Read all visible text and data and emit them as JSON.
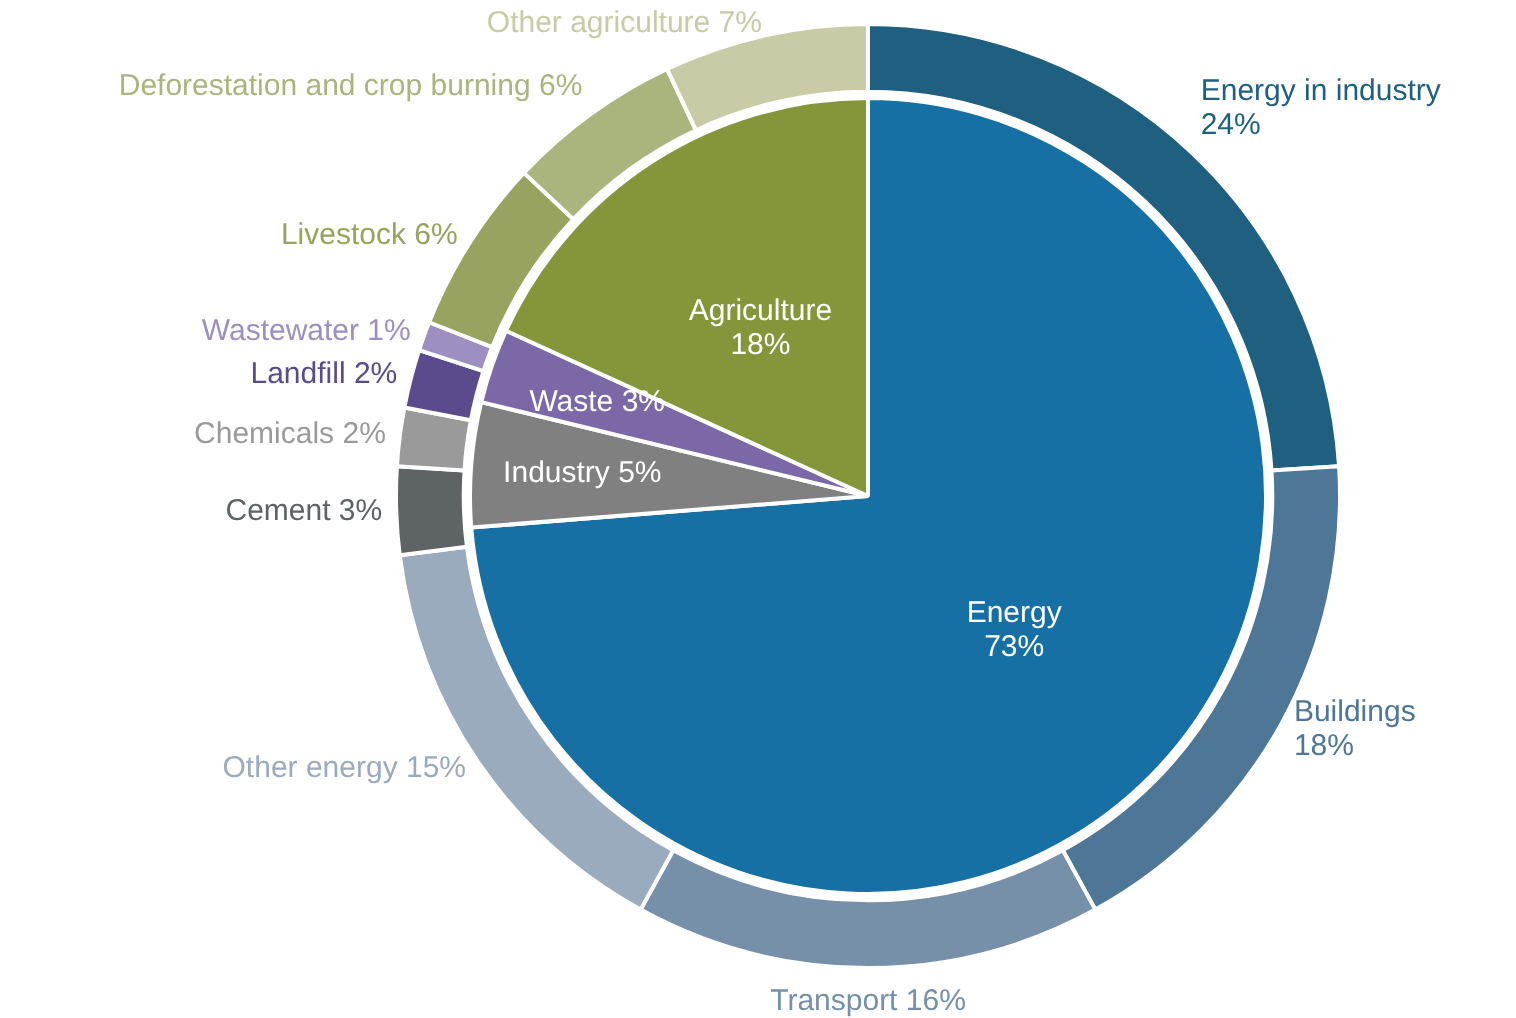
{
  "chart_data": [
    {
      "type": "pie",
      "categories": [
        "Energy",
        "Industry",
        "Waste",
        "Agriculture"
      ],
      "values": [
        73,
        5,
        3,
        18
      ],
      "value_labels": [
        "73%",
        "5%",
        "3%",
        "18%"
      ],
      "colors": [
        "#1670a3",
        "#808080",
        "#7b68a6",
        "#85963a"
      ]
    },
    {
      "type": "donut",
      "categories": [
        "Energy in industry",
        "Buildings",
        "Transport",
        "Other energy",
        "Cement",
        "Chemicals",
        "Landfill",
        "Wastewater",
        "Livestock",
        "Deforestation and crop burning",
        "Other agriculture"
      ],
      "values": [
        24,
        18,
        16,
        15,
        3,
        2,
        2,
        1,
        6,
        6,
        7
      ],
      "value_labels": [
        "24%",
        "18%",
        "16%",
        "15%",
        "3%",
        "2%",
        "2%",
        "1%",
        "6%",
        "6%",
        "7%"
      ],
      "colors": [
        "#1f5f80",
        "#4d7697",
        "#7590a8",
        "#9aabbd",
        "#5e6366",
        "#9a9a9a",
        "#5b4a8c",
        "#9d8fc0",
        "#97a35e",
        "#aab57e",
        "#c9caa6"
      ]
    }
  ]
}
